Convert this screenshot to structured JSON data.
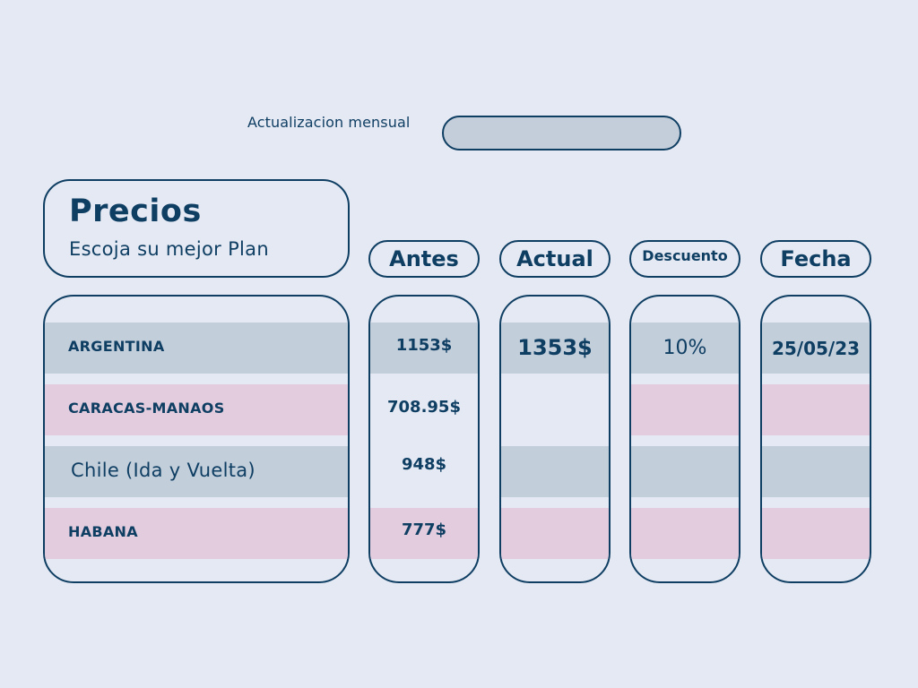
{
  "header": {
    "update_label": "Actualizacion mensual",
    "update_value": ""
  },
  "title_card": {
    "title": "Precios",
    "subtitle": "Escoja su mejor Plan"
  },
  "columns": {
    "antes": "Antes",
    "actual": "Actual",
    "descuento": "Descuento",
    "fecha": "Fecha"
  },
  "rows": [
    {
      "country": "ARGENTINA",
      "antes": "1153$",
      "actual": "1353$",
      "descuento": "10%",
      "fecha": "25/05/23"
    },
    {
      "country": "CARACAS-MANAOS",
      "antes": "708.95$",
      "actual": "",
      "descuento": "",
      "fecha": ""
    },
    {
      "country": "Chile (Ida y Vuelta)",
      "antes": "948$",
      "actual": "",
      "descuento": "",
      "fecha": ""
    },
    {
      "country": "HABANA",
      "antes": "777$",
      "actual": "",
      "descuento": "",
      "fecha": ""
    }
  ],
  "colors": {
    "background": "#e5e9f3",
    "text": "#0f3e63",
    "band_blue": "#c3cedb",
    "band_pink": "#e2ccdd"
  }
}
